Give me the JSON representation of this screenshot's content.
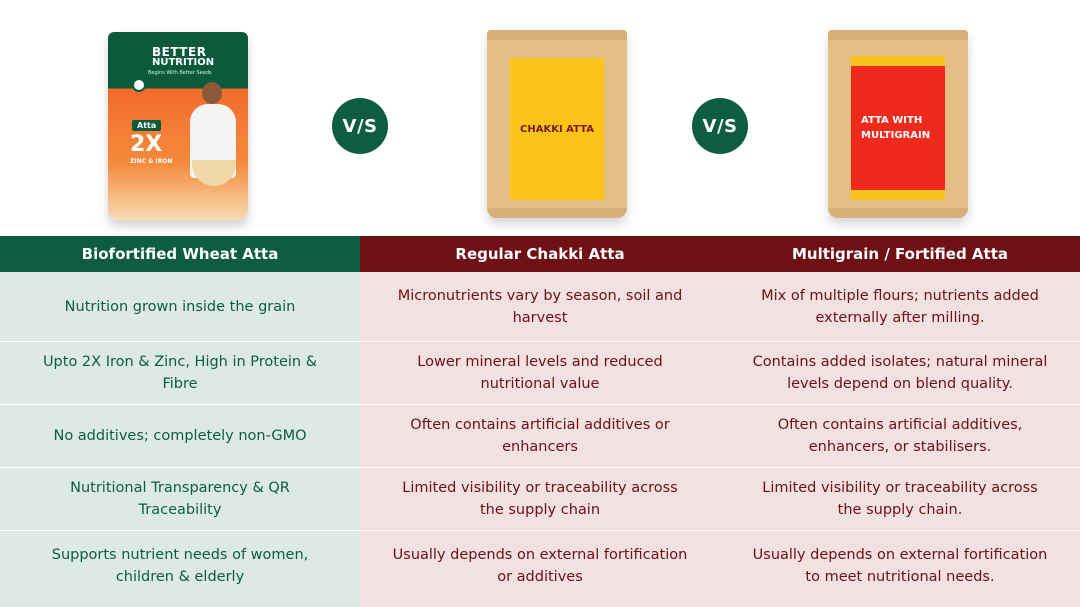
{
  "products": {
    "pack1": {
      "brand_line1": "BETTER",
      "brand_line2": "NUTRITION",
      "tagline": "Begins With Better Seeds",
      "badge": "Atta",
      "highlight": "2X",
      "highlight_sub": "ZINC & IRON"
    },
    "bag2_label": "CHAKKI ATTA",
    "bag3_label": "ATTA WITH MULTIGRAIN",
    "vs_label": "V/S"
  },
  "table": {
    "headers": [
      "Biofortified Wheat Atta",
      "Regular Chakki Atta",
      "Multigrain / Fortified Atta"
    ],
    "rows": [
      [
        "Nutrition grown inside the grain",
        "Micronutrients vary by season, soil and harvest",
        "Mix of multiple flours; nutrients added externally after milling."
      ],
      [
        "Upto 2X Iron & Zinc, High in Protein & Fibre",
        "Lower mineral levels and reduced nutritional value",
        "Contains added isolates; natural mineral levels depend on blend quality."
      ],
      [
        "No additives; completely non-GMO",
        "Often contains artificial additives or enhancers",
        "Often contains artificial additives, enhancers, or stabilisers."
      ],
      [
        "Nutritional Transparency & QR Traceability",
        "Limited visibility or traceability across the supply chain",
        "Limited visibility or traceability across the supply chain."
      ],
      [
        "Supports nutrient needs of women, children & elderly",
        "Usually depends on external fortification or additives",
        "Usually depends on external fortification to meet nutritional needs."
      ]
    ]
  },
  "colors": {
    "green": "#0d5c43",
    "maroon": "#6e1014",
    "green_bg": "#dde9e5",
    "maroon_bg": "#f1e1e1"
  }
}
